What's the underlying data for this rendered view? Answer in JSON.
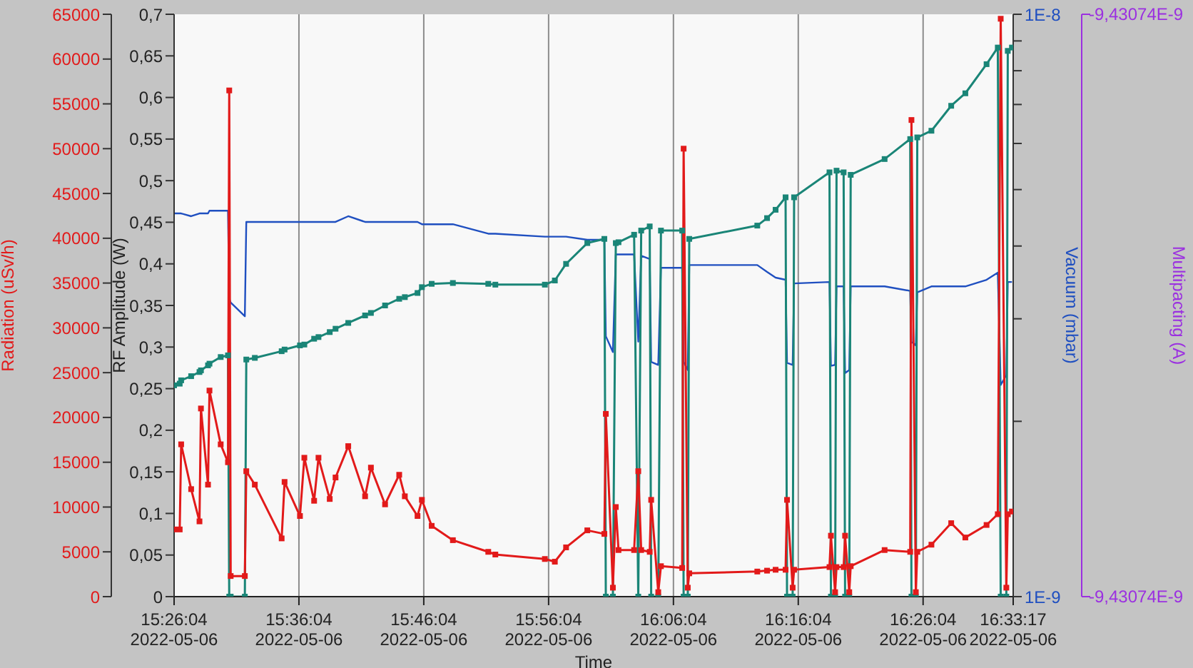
{
  "chart_data": {
    "type": "line",
    "xlabel": "Time",
    "ylabel": "Radiation (uSv/h)",
    "y2label": "RF Amplitude (W)",
    "y3label": "Vacuum (mbar)",
    "annotations": [
      "Multipacting (A)",
      "-9,43074E-9",
      "-9,43074E-9"
    ],
    "x": [
      "2022-05-06T15:26:04",
      "2022-05-06T15:26:31",
      "2022-05-06T15:26:38",
      "2022-05-06T15:27:26",
      "2022-05-06T15:28:06",
      "2022-05-06T15:28:13",
      "2022-05-06T15:28:47",
      "2022-05-06T15:28:54",
      "2022-05-06T15:29:48",
      "2022-05-06T15:30:23",
      "2022-05-06T15:30:29",
      "2022-05-06T15:30:36",
      "2022-05-06T15:31:44",
      "2022-05-06T15:31:51",
      "2022-05-06T15:32:32",
      "2022-05-06T15:34:41",
      "2022-05-06T15:34:55",
      "2022-05-06T15:36:09",
      "2022-05-06T15:36:30",
      "2022-05-06T15:37:17",
      "2022-05-06T15:37:38",
      "2022-05-06T15:38:32",
      "2022-05-06T15:39:00",
      "2022-05-06T15:40:01",
      "2022-05-06T15:41:22",
      "2022-05-06T15:41:50",
      "2022-05-06T15:42:58",
      "2022-05-06T15:44:06",
      "2022-05-06T15:44:33",
      "2022-05-06T15:45:34",
      "2022-05-06T15:45:55",
      "2022-05-06T15:46:42",
      "2022-05-06T15:48:24",
      "2022-05-06T15:51:14",
      "2022-05-06T15:51:48",
      "2022-05-06T15:55:46",
      "2022-05-06T15:56:34",
      "2022-05-06T15:57:28",
      "2022-05-06T15:59:10",
      "2022-05-06T16:00:32",
      "2022-05-06T16:00:39",
      "2022-05-06T16:01:13",
      "2022-05-06T16:01:27",
      "2022-05-06T16:01:40",
      "2022-05-06T16:02:55",
      "2022-05-06T16:03:15",
      "2022-05-06T16:03:29",
      "2022-05-06T16:04:10",
      "2022-05-06T16:04:17",
      "2022-05-06T16:04:51",
      "2022-05-06T16:05:04",
      "2022-05-06T16:06:46",
      "2022-05-06T16:06:53",
      "2022-05-06T16:07:13",
      "2022-05-06T16:07:20",
      "2022-05-06T16:12:47",
      "2022-05-06T16:13:34",
      "2022-05-06T16:14:15",
      "2022-05-06T16:15:03",
      "2022-05-06T16:15:10",
      "2022-05-06T16:15:37",
      "2022-05-06T16:15:44",
      "2022-05-06T16:18:34",
      "2022-05-06T16:18:41",
      "2022-05-06T16:19:01",
      "2022-05-06T16:19:08",
      "2022-05-06T16:19:42",
      "2022-05-06T16:19:49",
      "2022-05-06T16:20:09",
      "2022-05-06T16:20:16",
      "2022-05-06T16:22:59",
      "2022-05-06T16:25:02",
      "2022-05-06T16:25:08",
      "2022-05-06T16:25:29",
      "2022-05-06T16:25:36",
      "2022-05-06T16:26:44",
      "2022-05-06T16:28:19",
      "2022-05-06T16:29:27",
      "2022-05-06T16:31:09",
      "2022-05-06T16:32:03",
      "2022-05-06T16:32:17",
      "2022-05-06T16:32:44",
      "2022-05-06T16:32:51",
      "2022-05-06T16:33:11"
    ],
    "series": [
      {
        "color": "#1f4fc0",
        "axis": "y3",
        "marker": "none",
        "values": [
          4.55e-09,
          4.55e-09,
          4.55e-09,
          4.5e-09,
          4.55e-09,
          4.55e-09,
          4.55e-09,
          4.6e-09,
          4.6e-09,
          4.6e-09,
          3.25e-09,
          3.2e-09,
          3.03e-09,
          4.4e-09,
          4.4e-09,
          4.4e-09,
          4.4e-09,
          4.4e-09,
          4.4e-09,
          4.4e-09,
          4.4e-09,
          4.4e-09,
          4.4e-09,
          4.5e-09,
          4.4e-09,
          4.4e-09,
          4.4e-09,
          4.4e-09,
          4.4e-09,
          4.4e-09,
          4.36e-09,
          4.36e-09,
          4.36e-09,
          4.2e-09,
          4.2e-09,
          4.15e-09,
          4.15e-09,
          4.15e-09,
          4.1e-09,
          4.1e-09,
          2.8e-09,
          2.63e-09,
          3.87e-09,
          3.87e-09,
          3.87e-09,
          2.74e-09,
          3.85e-09,
          3.8e-09,
          2.53e-09,
          2.5e-09,
          3.67e-09,
          3.67e-09,
          2.53e-09,
          2.45e-09,
          3.71e-09,
          3.71e-09,
          3.61e-09,
          3.53e-09,
          3.5e-09,
          2.52e-09,
          2.5e-09,
          3.45e-09,
          3.47e-09,
          2.49e-09,
          2.5e-09,
          3.41e-09,
          3.41e-09,
          2.42e-09,
          2.45e-09,
          3.41e-09,
          3.41e-09,
          3.35e-09,
          2.74e-09,
          2.7e-09,
          3.33e-09,
          3.41e-09,
          3.41e-09,
          3.41e-09,
          3.5e-09,
          3.6e-09,
          2.31e-09,
          2.4e-09,
          3.47e-09,
          3.47e-09
        ]
      },
      {
        "color": "#1a8577",
        "axis": "y2",
        "marker": "square",
        "values": [
          0.254,
          0.256,
          0.26,
          0.265,
          0.27,
          0.272,
          0.278,
          0.28,
          0.288,
          0.29,
          0,
          0,
          0,
          0.285,
          0.287,
          0.295,
          0.297,
          0.302,
          0.303,
          0.31,
          0.312,
          0.318,
          0.322,
          0.329,
          0.338,
          0.341,
          0.35,
          0.358,
          0.36,
          0.365,
          0.372,
          0.376,
          0.377,
          0.376,
          0.375,
          0.375,
          0.38,
          0.4,
          0.425,
          0.43,
          0,
          0,
          0.425,
          0.426,
          0.435,
          0,
          0.44,
          0.445,
          0,
          0,
          0.44,
          0.44,
          0,
          0,
          0.43,
          0.446,
          0.455,
          0.465,
          0.48,
          0,
          0,
          0.48,
          0.51,
          0,
          0,
          0.512,
          0.51,
          0,
          0,
          0.507,
          0.526,
          0.55,
          0,
          0,
          0.552,
          0.56,
          0.59,
          0.605,
          0.64,
          0.66,
          0,
          0,
          0.656,
          0.66
        ]
      },
      {
        "color": "#e21a1a",
        "axis": "y",
        "marker": "square",
        "values": [
          7500,
          7500,
          17000,
          12000,
          8400,
          21000,
          12500,
          23000,
          17000,
          15000,
          56500,
          2300,
          2300,
          14000,
          12500,
          6500,
          12800,
          9000,
          15500,
          10700,
          15500,
          10900,
          13300,
          16800,
          11200,
          14400,
          10300,
          13600,
          11200,
          9000,
          10800,
          7900,
          6300,
          5000,
          4700,
          4200,
          3900,
          5500,
          7400,
          7000,
          20400,
          1000,
          10000,
          5200,
          5200,
          14000,
          5200,
          5000,
          10800,
          500,
          3400,
          3200,
          50000,
          1000,
          2600,
          2800,
          2900,
          3000,
          3000,
          10800,
          1000,
          3000,
          3300,
          6800,
          500,
          3300,
          3300,
          6800,
          500,
          3400,
          5200,
          5000,
          53200,
          500,
          5000,
          5800,
          8200,
          6600,
          8000,
          9200,
          64500,
          1000,
          9200,
          9500
        ]
      }
    ],
    "xlim": [
      "2022-05-06T15:26:04",
      "2022-05-06T16:33:17"
    ],
    "xticks": [
      {
        "value": "2022-05-06T15:26:04",
        "label": "15:26:04\n2022-05-06"
      },
      {
        "value": "2022-05-06T15:36:04",
        "label": "15:36:04\n2022-05-06"
      },
      {
        "value": "2022-05-06T15:46:04",
        "label": "15:46:04\n2022-05-06"
      },
      {
        "value": "2022-05-06T15:56:04",
        "label": "15:56:04\n2022-05-06"
      },
      {
        "value": "2022-05-06T16:06:04",
        "label": "16:06:04\n2022-05-06"
      },
      {
        "value": "2022-05-06T16:16:04",
        "label": "16:16:04\n2022-05-06"
      },
      {
        "value": "2022-05-06T16:26:04",
        "label": "16:26:04\n2022-05-06"
      },
      {
        "value": "2022-05-06T16:33:17",
        "label": "16:33:17\n2022-05-06"
      }
    ],
    "ylim": [
      0,
      65000
    ],
    "yticks": [
      0,
      5000,
      10000,
      15000,
      20000,
      25000,
      30000,
      35000,
      40000,
      45000,
      50000,
      55000,
      60000,
      65000
    ],
    "y2lim": [
      0,
      0.7
    ],
    "y2ticks": [
      0,
      {
        "value": 0.05,
        "label": "0,05"
      },
      {
        "value": 0.1,
        "label": "0,1"
      },
      {
        "value": 0.15,
        "label": "0,15"
      },
      {
        "value": 0.2,
        "label": "0,2"
      },
      {
        "value": 0.25,
        "label": "0,25"
      },
      {
        "value": 0.3,
        "label": "0,3"
      },
      {
        "value": 0.35,
        "label": "0,35"
      },
      {
        "value": 0.4,
        "label": "0,4"
      },
      {
        "value": 0.45,
        "label": "0,45"
      },
      {
        "value": 0.5,
        "label": "0,5"
      },
      {
        "value": 0.55,
        "label": "0,55"
      },
      {
        "value": 0.6,
        "label": "0,6"
      },
      {
        "value": 0.65,
        "label": "0,65"
      },
      {
        "value": 0.7,
        "label": "0,7"
      }
    ],
    "y3lim": [
      1e-09,
      1e-08
    ],
    "y3ticks": [
      {
        "value": 1e-09,
        "label": "1E-9"
      },
      {
        "value": 2e-09,
        "label": null
      },
      {
        "value": 3e-09,
        "label": null
      },
      {
        "value": 4e-09,
        "label": null
      },
      {
        "value": 5e-09,
        "label": null
      },
      {
        "value": 6e-09,
        "label": null
      },
      {
        "value": 7e-09,
        "label": null
      },
      {
        "value": 8e-09,
        "label": null
      },
      {
        "value": 9e-09,
        "label": null
      },
      {
        "value": 1e-08,
        "label": "1E-8"
      }
    ],
    "log": "y3",
    "grid": "x",
    "legend": false
  }
}
